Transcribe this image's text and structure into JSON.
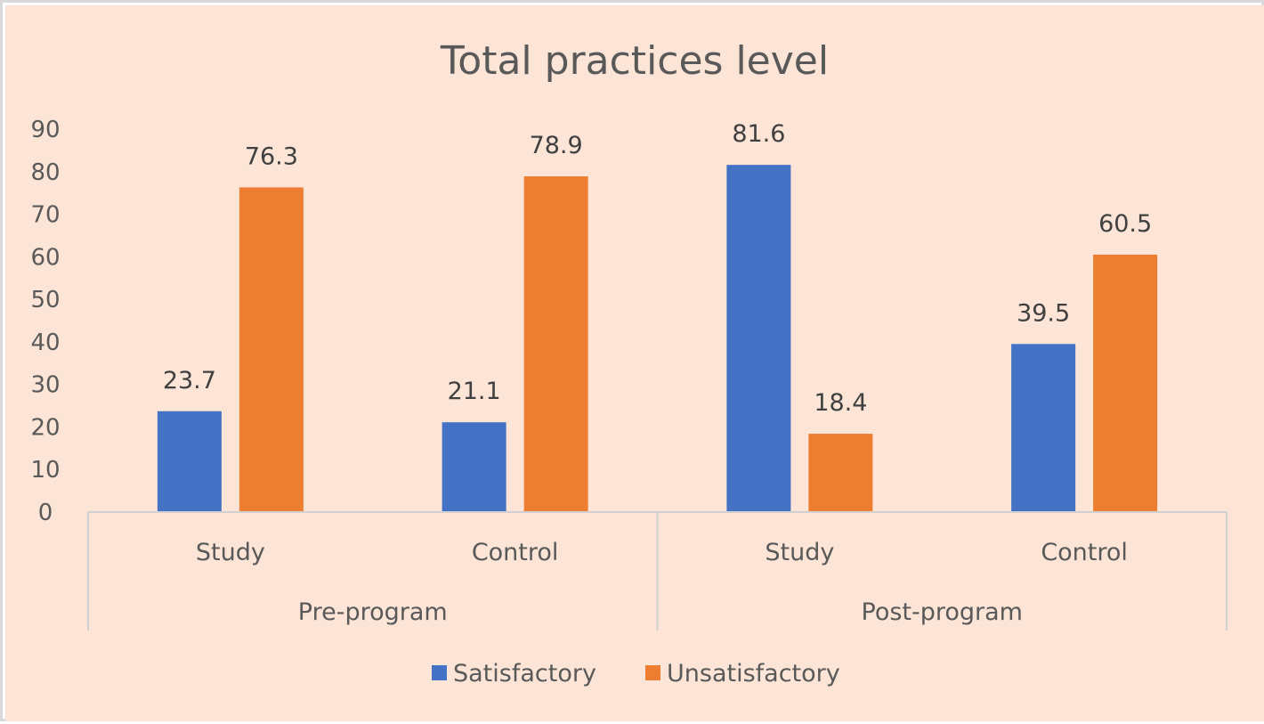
{
  "colors": {
    "background": "#fce4d6",
    "satisfactory": "#4472c4",
    "unsatisfactory": "#ed7d31",
    "axis_line": "#d0d0d0"
  },
  "chart_data": {
    "type": "bar",
    "title": "Total practices level",
    "xlabel": "",
    "ylabel": "",
    "ylim": [
      0,
      90
    ],
    "yticks": [
      0,
      10,
      20,
      30,
      40,
      50,
      60,
      70,
      80,
      90
    ],
    "grid": false,
    "legend_position": "bottom",
    "categories": [
      "Study",
      "Control",
      "Study",
      "Control"
    ],
    "groups": [
      {
        "label": "Pre-program",
        "categories": [
          "Study",
          "Control"
        ]
      },
      {
        "label": "Post-program",
        "categories": [
          "Study",
          "Control"
        ]
      }
    ],
    "series": [
      {
        "name": "Satisfactory",
        "values": [
          23.7,
          21.1,
          81.6,
          39.5
        ]
      },
      {
        "name": "Unsatisfactory",
        "values": [
          76.3,
          78.9,
          18.4,
          60.5
        ]
      }
    ]
  }
}
